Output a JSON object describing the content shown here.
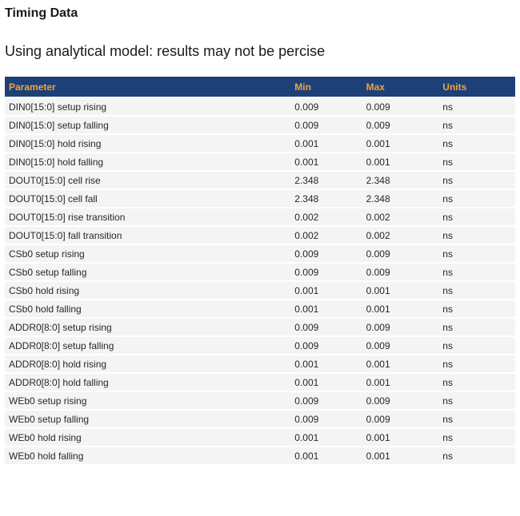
{
  "page": {
    "title": "Timing Data",
    "subtitle": "Using analytical model: results may not be percise"
  },
  "table": {
    "columns": [
      "Parameter",
      "Min",
      "Max",
      "Units"
    ],
    "rows": [
      {
        "parameter": "DIN0[15:0] setup rising",
        "min": "0.009",
        "max": "0.009",
        "units": "ns"
      },
      {
        "parameter": "DIN0[15:0] setup falling",
        "min": "0.009",
        "max": "0.009",
        "units": "ns"
      },
      {
        "parameter": "DIN0[15:0] hold rising",
        "min": "0.001",
        "max": "0.001",
        "units": "ns"
      },
      {
        "parameter": "DIN0[15:0] hold falling",
        "min": "0.001",
        "max": "0.001",
        "units": "ns"
      },
      {
        "parameter": "DOUT0[15:0] cell rise",
        "min": "2.348",
        "max": "2.348",
        "units": "ns"
      },
      {
        "parameter": "DOUT0[15:0] cell fall",
        "min": "2.348",
        "max": "2.348",
        "units": "ns"
      },
      {
        "parameter": "DOUT0[15:0] rise transition",
        "min": "0.002",
        "max": "0.002",
        "units": "ns"
      },
      {
        "parameter": "DOUT0[15:0] fall transition",
        "min": "0.002",
        "max": "0.002",
        "units": "ns"
      },
      {
        "parameter": "CSb0 setup rising",
        "min": "0.009",
        "max": "0.009",
        "units": "ns"
      },
      {
        "parameter": "CSb0 setup falling",
        "min": "0.009",
        "max": "0.009",
        "units": "ns"
      },
      {
        "parameter": "CSb0 hold rising",
        "min": "0.001",
        "max": "0.001",
        "units": "ns"
      },
      {
        "parameter": "CSb0 hold falling",
        "min": "0.001",
        "max": "0.001",
        "units": "ns"
      },
      {
        "parameter": "ADDR0[8:0] setup rising",
        "min": "0.009",
        "max": "0.009",
        "units": "ns"
      },
      {
        "parameter": "ADDR0[8:0] setup falling",
        "min": "0.009",
        "max": "0.009",
        "units": "ns"
      },
      {
        "parameter": "ADDR0[8:0] hold rising",
        "min": "0.001",
        "max": "0.001",
        "units": "ns"
      },
      {
        "parameter": "ADDR0[8:0] hold falling",
        "min": "0.001",
        "max": "0.001",
        "units": "ns"
      },
      {
        "parameter": "WEb0 setup rising",
        "min": "0.009",
        "max": "0.009",
        "units": "ns"
      },
      {
        "parameter": "WEb0 setup falling",
        "min": "0.009",
        "max": "0.009",
        "units": "ns"
      },
      {
        "parameter": "WEb0 hold rising",
        "min": "0.001",
        "max": "0.001",
        "units": "ns"
      },
      {
        "parameter": "WEb0 hold falling",
        "min": "0.001",
        "max": "0.001",
        "units": "ns"
      }
    ]
  },
  "colors": {
    "header_bg": "#1c4077",
    "header_text": "#f0a33c",
    "row_bg": "#f4f4f4",
    "row_separator": "#ffffff",
    "text_color": "#26272a",
    "page_bg": "#ffffff"
  }
}
